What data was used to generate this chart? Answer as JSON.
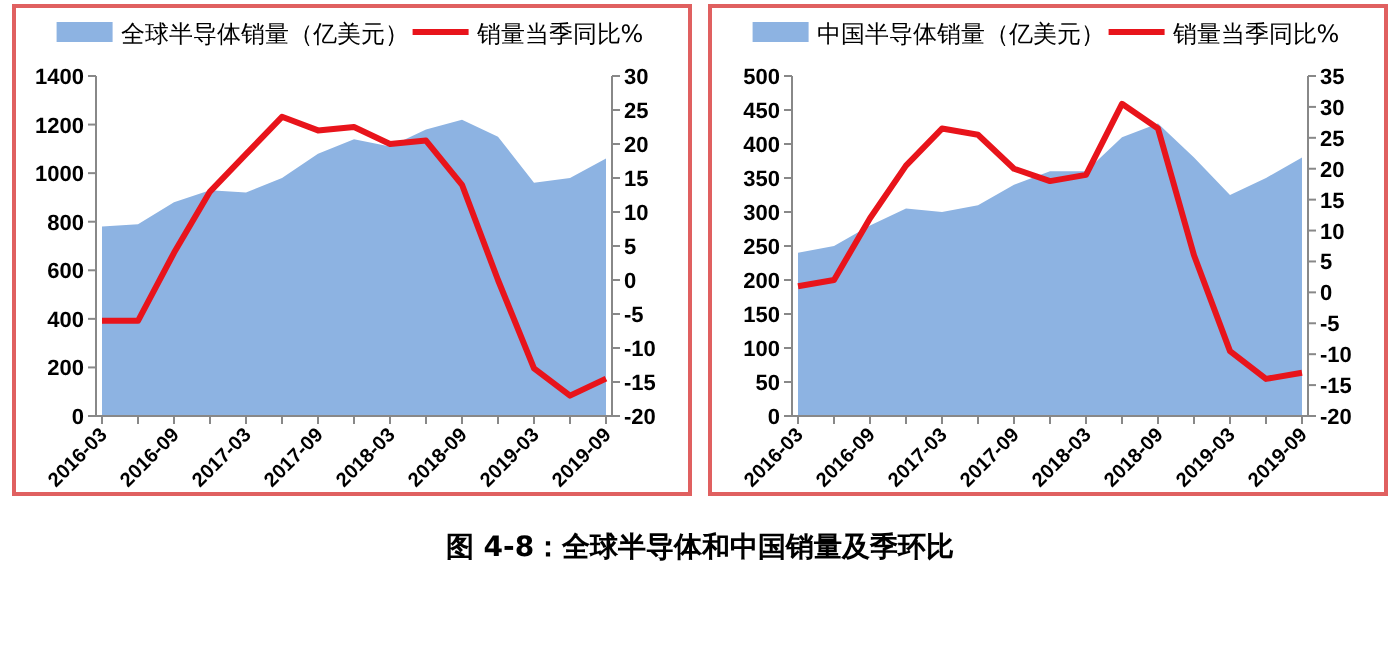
{
  "chart_data": [
    {
      "type": "area",
      "title": "图 4-8：全球半导体和中国销量及季环比",
      "categories": [
        "2016-03",
        null,
        "2016-09",
        null,
        "2017-03",
        null,
        "2017-09",
        null,
        "2018-03",
        null,
        "2018-09",
        null,
        "2019-03",
        null,
        "2019-09"
      ],
      "series": [
        {
          "name": "全球半导体销量（亿美元）",
          "color": "#8db3e2",
          "values": [
            780,
            790,
            880,
            930,
            920,
            980,
            1080,
            1140,
            1110,
            1180,
            1220,
            1150,
            960,
            980,
            1060
          ]
        },
        {
          "name": "销量当季同比%",
          "type": "line",
          "axis": "y2",
          "color": "#e8141b",
          "values": [
            -6,
            -6,
            4,
            13,
            18.5,
            24,
            22,
            22.5,
            20,
            20.5,
            14,
            0,
            -13,
            -17,
            -14.5
          ]
        }
      ],
      "ylim": [
        0,
        1400
      ],
      "yticks": [
        0,
        200,
        400,
        600,
        800,
        1000,
        1200,
        1400
      ],
      "y2lim": [
        -20,
        30
      ],
      "y2ticks": [
        -20,
        -15,
        -10,
        -5,
        0,
        5,
        10,
        15,
        20,
        25,
        30
      ],
      "legend": "top",
      "grid": false
    },
    {
      "type": "area",
      "categories": [
        "2016-03",
        null,
        "2016-09",
        null,
        "2017-03",
        null,
        "2017-09",
        null,
        "2018-03",
        null,
        "2018-09",
        null,
        "2019-03",
        null,
        "2019-09"
      ],
      "series": [
        {
          "name": "中国半导体销量（亿美元）",
          "color": "#8db3e2",
          "values": [
            240,
            250,
            280,
            305,
            300,
            310,
            340,
            360,
            360,
            410,
            430,
            380,
            325,
            350,
            380
          ]
        },
        {
          "name": "销量当季同比%",
          "type": "line",
          "axis": "y2",
          "color": "#e8141b",
          "values": [
            1,
            2,
            12,
            20.5,
            26.5,
            25.5,
            20,
            18,
            19,
            30.5,
            26.5,
            6,
            -9.5,
            -14,
            -13
          ]
        }
      ],
      "ylim": [
        0,
        500
      ],
      "yticks": [
        0,
        50,
        100,
        150,
        200,
        250,
        300,
        350,
        400,
        450,
        500
      ],
      "y2lim": [
        -20,
        35
      ],
      "y2ticks": [
        -20,
        -15,
        -10,
        -5,
        0,
        5,
        10,
        15,
        20,
        25,
        30,
        35
      ],
      "legend": "top",
      "grid": false
    }
  ]
}
